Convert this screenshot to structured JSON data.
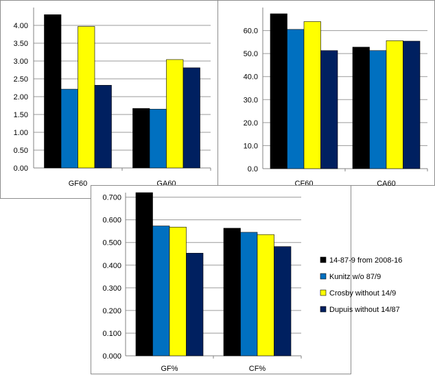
{
  "colors": {
    "series": [
      "#000000",
      "#0070C0",
      "#FFFF00",
      "#002060"
    ],
    "grid": "#9a9a9a",
    "axis": "#808080"
  },
  "legend": {
    "placement": "right",
    "entries": [
      "14-87-9 from 2008-16",
      "Kunitz w/o 87/9",
      "Crosby without 14/9",
      "Dupuis without 14/87"
    ]
  },
  "chart_data": [
    {
      "type": "bar",
      "categories": [
        "GF60",
        "GA60"
      ],
      "ylim": [
        0,
        4.5
      ],
      "yticks": [
        "0.00",
        "0.50",
        "1.00",
        "1.50",
        "2.00",
        "2.50",
        "3.00",
        "3.50",
        "4.00"
      ],
      "grid": true,
      "series": [
        {
          "name": "14-87-9 from 2008-16",
          "values": [
            4.3,
            1.67
          ]
        },
        {
          "name": "Kunitz w/o 87/9",
          "values": [
            2.21,
            1.65
          ]
        },
        {
          "name": "Crosby without 14/9",
          "values": [
            3.97,
            3.04
          ]
        },
        {
          "name": "Dupuis without 14/87",
          "values": [
            2.32,
            2.81
          ]
        }
      ]
    },
    {
      "type": "bar",
      "categories": [
        "CF60",
        "CA60"
      ],
      "ylim": [
        0,
        70
      ],
      "yticks": [
        "0.0",
        "10.0",
        "20.0",
        "30.0",
        "40.0",
        "50.0",
        "60.0"
      ],
      "grid": true,
      "series": [
        {
          "name": "14-87-9 from 2008-16",
          "values": [
            67.3,
            52.8
          ]
        },
        {
          "name": "Kunitz w/o 87/9",
          "values": [
            60.5,
            51.3
          ]
        },
        {
          "name": "Crosby without 14/9",
          "values": [
            63.9,
            55.6
          ]
        },
        {
          "name": "Dupuis without 14/87",
          "values": [
            51.3,
            55.4
          ]
        }
      ]
    },
    {
      "type": "bar",
      "categories": [
        "GF%",
        "CF%"
      ],
      "ylim": [
        0,
        0.72
      ],
      "yticks": [
        "0.000",
        "0.100",
        "0.200",
        "0.300",
        "0.400",
        "0.500",
        "0.600",
        "0.700"
      ],
      "grid": true,
      "series": [
        {
          "name": "14-87-9 from 2008-16",
          "values": [
            0.72,
            0.563
          ]
        },
        {
          "name": "Kunitz w/o 87/9",
          "values": [
            0.573,
            0.545
          ]
        },
        {
          "name": "Crosby without 14/9",
          "values": [
            0.568,
            0.535
          ]
        },
        {
          "name": "Dupuis without 14/87",
          "values": [
            0.453,
            0.482
          ]
        }
      ]
    }
  ]
}
